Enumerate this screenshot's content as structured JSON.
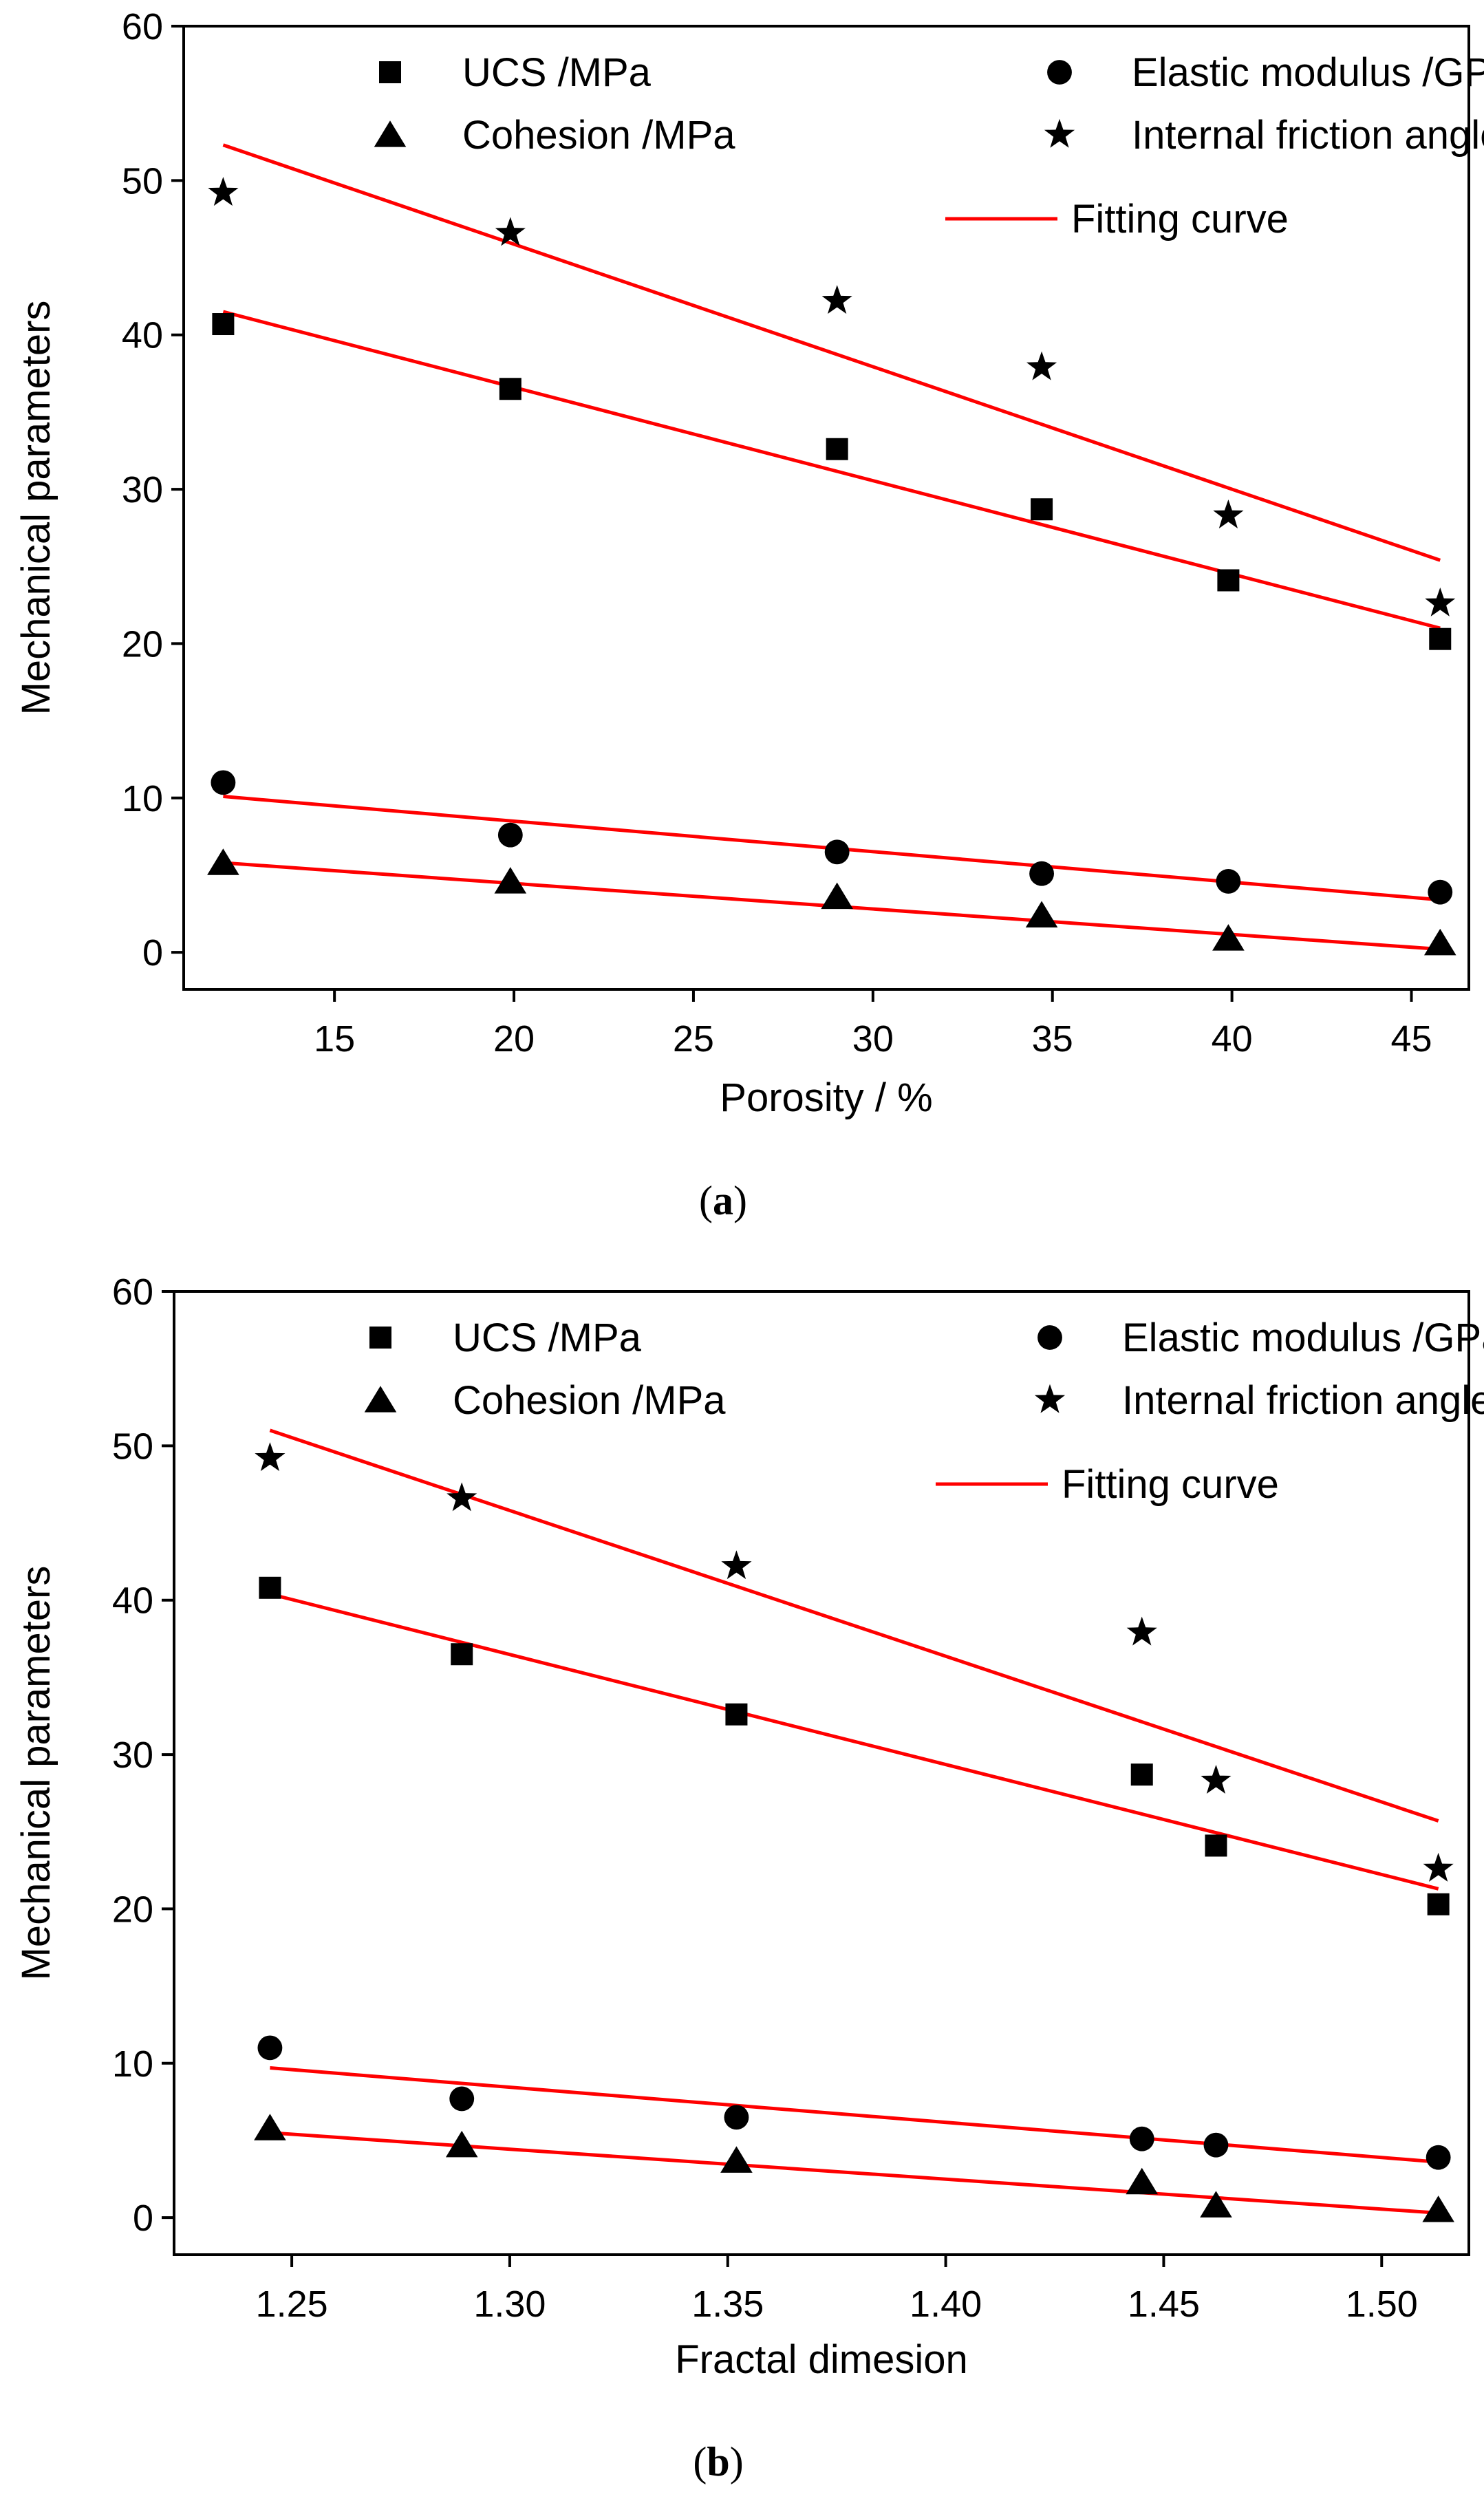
{
  "chart_data": [
    {
      "type": "scatter",
      "panel_label": "(a)",
      "panel_letter": "a",
      "xlabel": "Porosity / %",
      "ylabel": "Mechanical parameters",
      "xlim": [
        10.8,
        46.6
      ],
      "ylim": [
        -2.4,
        60
      ],
      "xticks": [
        15,
        20,
        25,
        30,
        35,
        40,
        45
      ],
      "yticks": [
        0,
        10,
        20,
        30,
        40,
        50,
        60
      ],
      "x": [
        11.9,
        19.9,
        29.0,
        34.7,
        39.9,
        45.8
      ],
      "series": [
        {
          "name": "UCS /MPa",
          "marker": "square",
          "values": [
            40.7,
            36.5,
            32.6,
            28.7,
            24.1,
            20.3
          ]
        },
        {
          "name": "Elastic modulus /GPa",
          "marker": "circle",
          "values": [
            11.0,
            7.6,
            6.5,
            5.1,
            4.6,
            3.9
          ]
        },
        {
          "name": "Cohesion /MPa",
          "marker": "triangle",
          "values": [
            5.8,
            4.6,
            3.6,
            2.4,
            0.9,
            0.6
          ]
        },
        {
          "name": "Internal friction angle /°",
          "marker": "star",
          "values": [
            49.2,
            46.6,
            42.2,
            37.9,
            28.3,
            22.6
          ]
        }
      ],
      "fits": [
        {
          "series": "UCS /MPa",
          "x": [
            11.9,
            45.8
          ],
          "y": [
            41.5,
            21.0
          ]
        },
        {
          "series": "Elastic modulus /GPa",
          "x": [
            11.9,
            45.8
          ],
          "y": [
            10.1,
            3.4
          ]
        },
        {
          "series": "Cohesion /MPa",
          "x": [
            11.9,
            45.8
          ],
          "y": [
            5.8,
            0.2
          ]
        },
        {
          "series": "Internal friction angle /°",
          "x": [
            11.9,
            45.8
          ],
          "y": [
            52.3,
            25.4
          ]
        }
      ],
      "fit_label": "Fitting curve",
      "fit_color": "#ff0000",
      "marker_color": "#000000",
      "legend_position": "top"
    },
    {
      "type": "scatter",
      "panel_label": "(b)",
      "panel_letter": "b",
      "xlabel": "Fractal dimesion",
      "ylabel": "Mechanical parameters",
      "xlim": [
        1.223,
        1.52
      ],
      "ylim": [
        -2.4,
        60
      ],
      "xticks": [
        1.25,
        1.3,
        1.35,
        1.4,
        1.45,
        1.5
      ],
      "xtick_labels": [
        "1.25",
        "1.30",
        "1.35",
        "1.40",
        "1.45",
        "1.50"
      ],
      "yticks": [
        0,
        10,
        20,
        30,
        40,
        50,
        60
      ],
      "series": [
        {
          "name": "UCS /MPa",
          "marker": "square",
          "x": [
            1.245,
            1.289,
            1.352,
            1.445,
            1.462,
            1.513
          ],
          "values": [
            40.8,
            36.5,
            32.6,
            28.7,
            24.1,
            20.3
          ]
        },
        {
          "name": "Elastic modulus /GPa",
          "marker": "circle",
          "x": [
            1.245,
            1.289,
            1.352,
            1.445,
            1.462,
            1.513
          ],
          "values": [
            11.0,
            7.7,
            6.5,
            5.1,
            4.7,
            3.9
          ]
        },
        {
          "name": "Cohesion /MPa",
          "marker": "triangle",
          "x": [
            1.245,
            1.289,
            1.352,
            1.445,
            1.462,
            1.513
          ],
          "values": [
            5.8,
            4.7,
            3.7,
            2.3,
            0.8,
            0.5
          ]
        },
        {
          "name": "Internal friction angle /°",
          "marker": "star",
          "x": [
            1.245,
            1.289,
            1.352,
            1.445,
            1.462,
            1.513
          ],
          "values": [
            49.2,
            46.6,
            42.2,
            37.9,
            28.3,
            22.6
          ]
        }
      ],
      "fits": [
        {
          "series": "UCS /MPa",
          "x": [
            1.245,
            1.513
          ],
          "y": [
            40.4,
            21.3
          ]
        },
        {
          "series": "Elastic modulus /GPa",
          "x": [
            1.245,
            1.513
          ],
          "y": [
            9.7,
            3.6
          ]
        },
        {
          "series": "Cohesion /MPa",
          "x": [
            1.245,
            1.513
          ],
          "y": [
            5.5,
            0.3
          ]
        },
        {
          "series": "Internal friction angle /°",
          "x": [
            1.245,
            1.513
          ],
          "y": [
            51.0,
            25.7
          ]
        }
      ],
      "fit_label": "Fitting curve",
      "fit_color": "#ff0000",
      "marker_color": "#000000",
      "legend_position": "top"
    }
  ]
}
